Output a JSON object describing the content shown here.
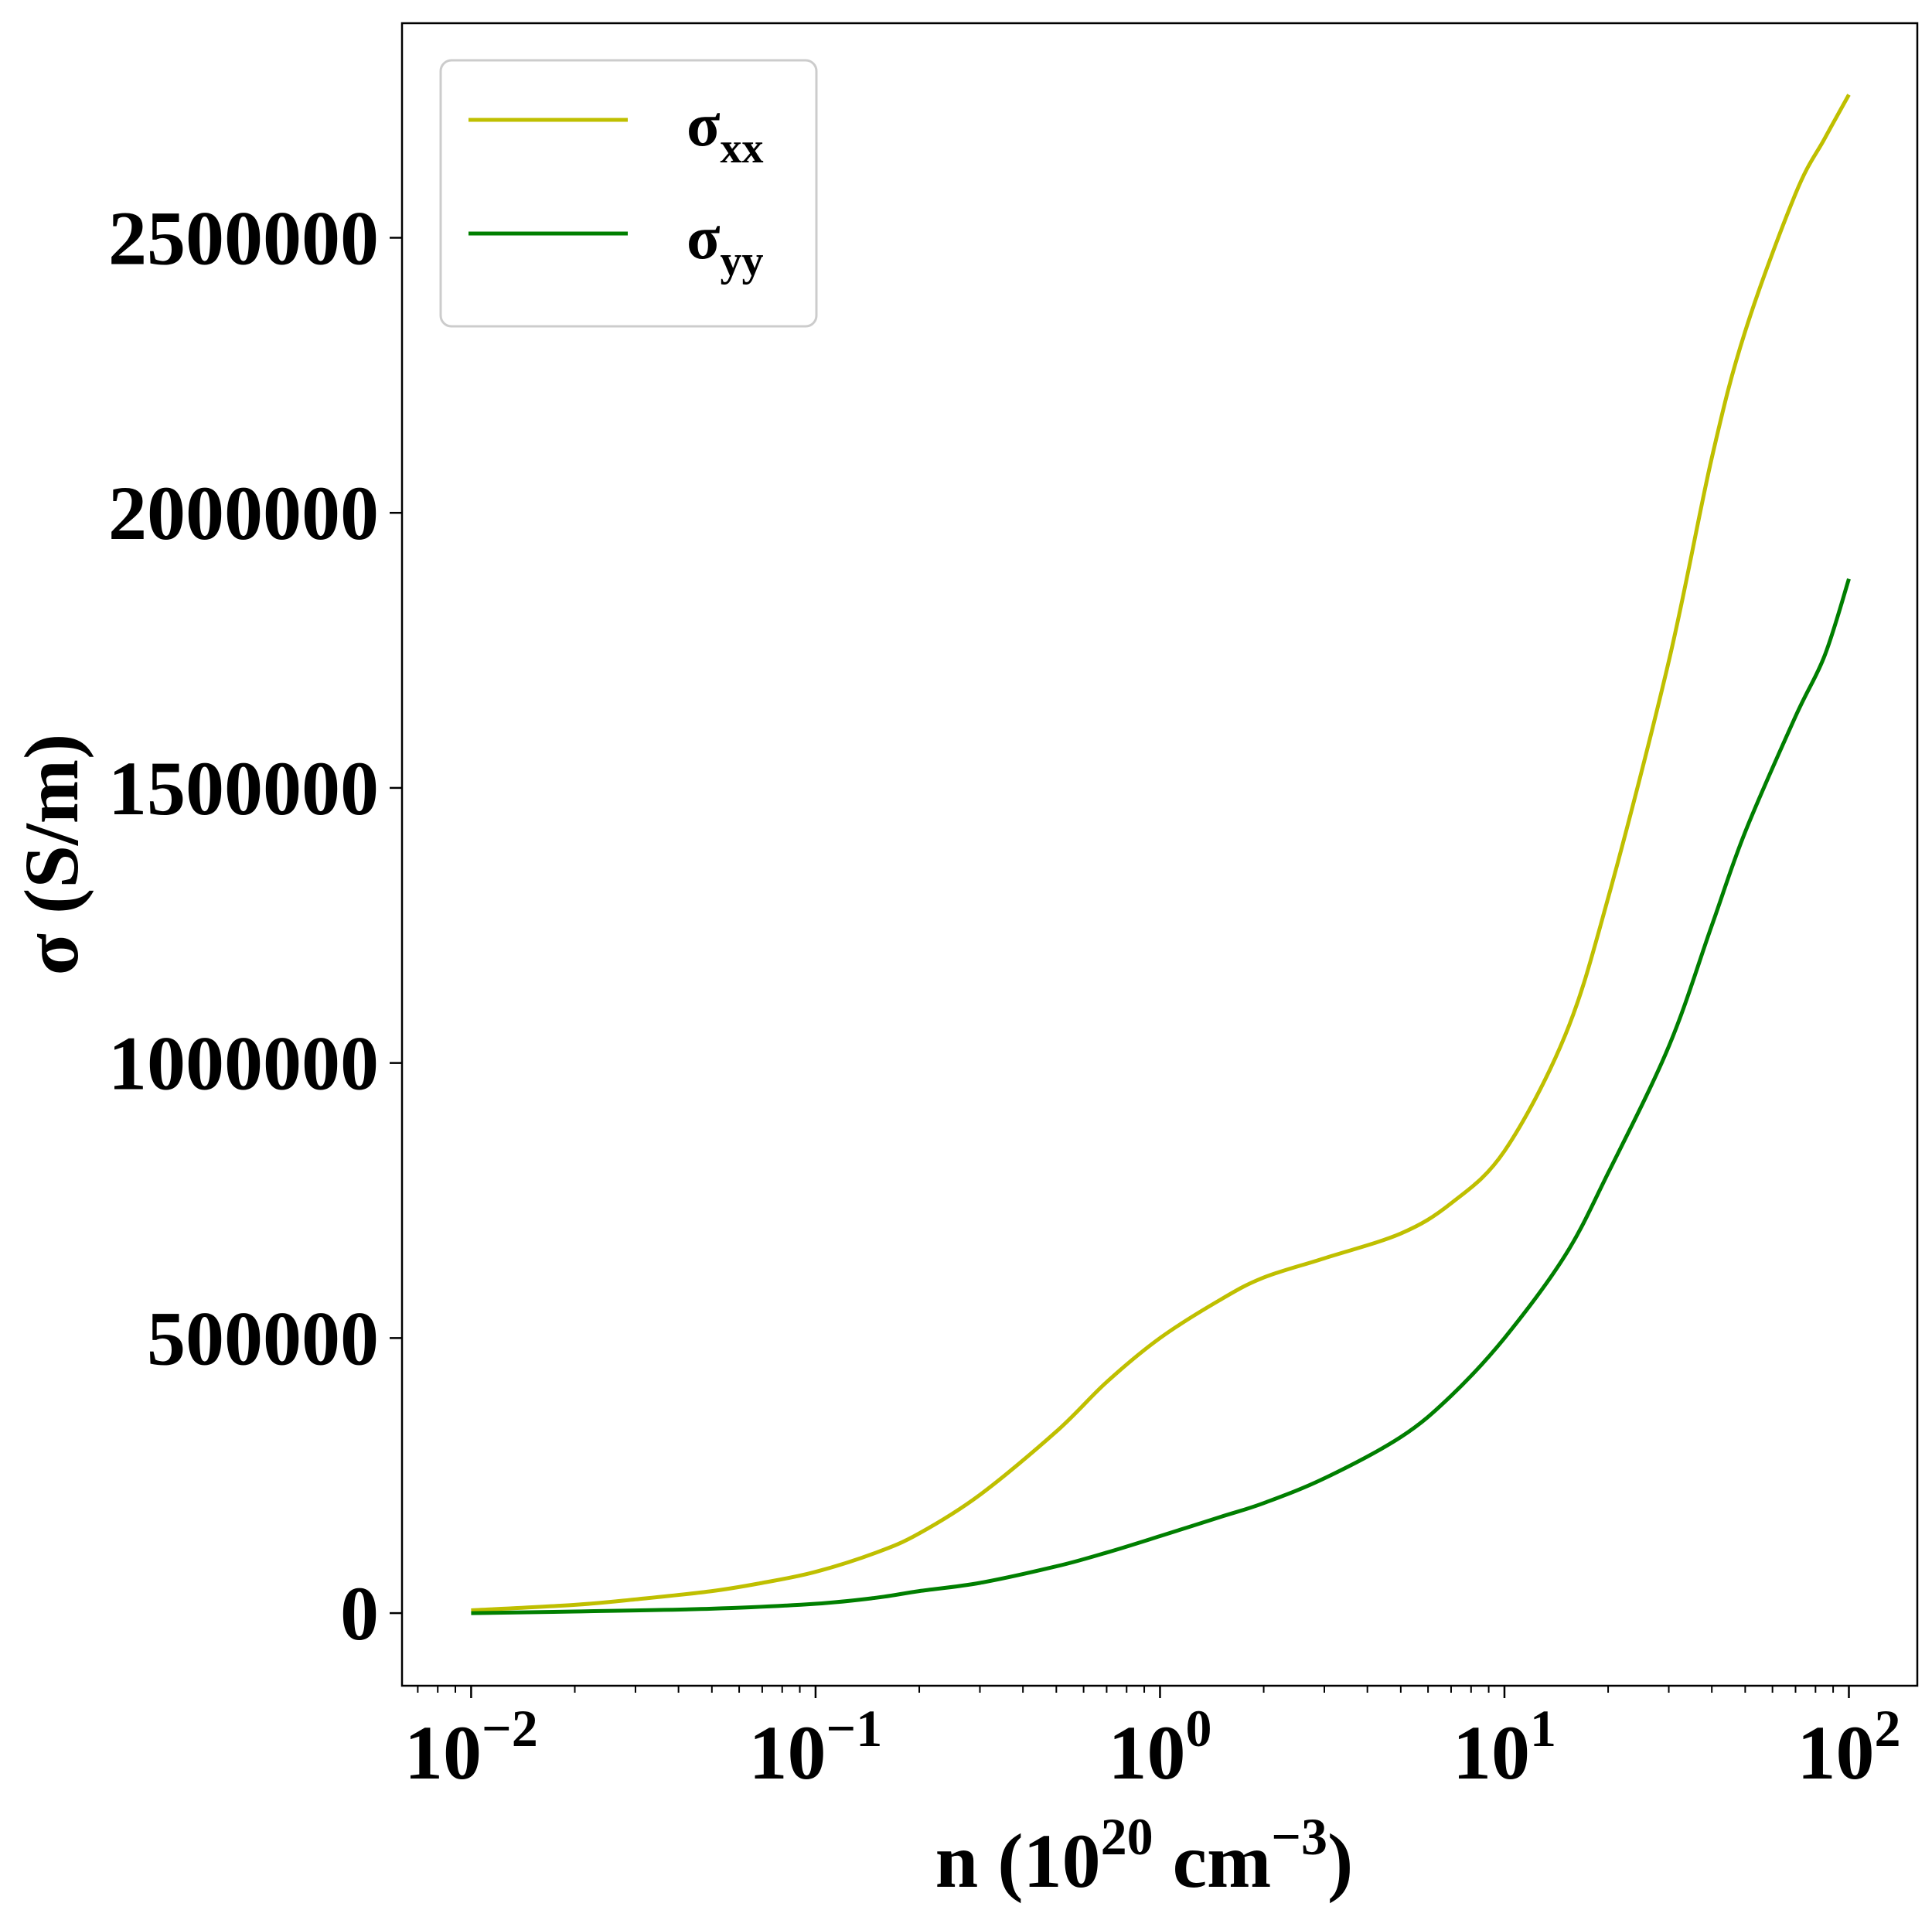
{
  "chart_data": {
    "type": "line",
    "xscale": "log",
    "xlim": [
      0.0063,
      158
    ],
    "ylim": [
      -132000,
      2890000
    ],
    "xlabel": {
      "base": "n (10",
      "sup1": "20",
      "mid": " cm",
      "sup2": "−3",
      "end": ")"
    },
    "ylabel": "σ (S/m)",
    "grid": false,
    "legend_position": "upper-left",
    "x_ticks": [
      {
        "value": 0.01,
        "base": "10",
        "exp": "−2"
      },
      {
        "value": 0.1,
        "base": "10",
        "exp": "−1"
      },
      {
        "value": 1,
        "base": "10",
        "exp": "0"
      },
      {
        "value": 10,
        "base": "10",
        "exp": "1"
      },
      {
        "value": 100,
        "base": "10",
        "exp": "2"
      }
    ],
    "y_ticks": [
      {
        "value": 0,
        "label": "0"
      },
      {
        "value": 500000,
        "label": "500000"
      },
      {
        "value": 1000000,
        "label": "1000000"
      },
      {
        "value": 1500000,
        "label": "1500000"
      },
      {
        "value": 2000000,
        "label": "2000000"
      },
      {
        "value": 2500000,
        "label": "2500000"
      }
    ],
    "series": [
      {
        "name": "σ",
        "name_sub": "xx",
        "color": "#bfbf00",
        "x": [
          0.01,
          0.02,
          0.03,
          0.05,
          0.07,
          0.1,
          0.15,
          0.2,
          0.3,
          0.5,
          0.7,
          1,
          1.5,
          2,
          3,
          5,
          7,
          10,
          15,
          20,
          30,
          40,
          50,
          70,
          85,
          100
        ],
        "y": [
          5000,
          15000,
          25000,
          40000,
          55000,
          75000,
          110000,
          145000,
          215000,
          330000,
          420000,
          500000,
          570000,
          610000,
          645000,
          690000,
          745000,
          840000,
          1050000,
          1300000,
          1730000,
          2100000,
          2330000,
          2580000,
          2680000,
          2760000
        ]
      },
      {
        "name": "σ",
        "name_sub": "yy",
        "color": "#007f00",
        "x": [
          0.01,
          0.02,
          0.05,
          0.1,
          0.15,
          0.2,
          0.3,
          0.5,
          0.7,
          1,
          1.5,
          2,
          3,
          5,
          7,
          10,
          15,
          20,
          30,
          40,
          50,
          70,
          85,
          100
        ],
        "y": [
          0,
          3000,
          8000,
          17000,
          28000,
          40000,
          55000,
          85000,
          110000,
          140000,
          175000,
          200000,
          245000,
          320000,
          395000,
          500000,
          650000,
          800000,
          1030000,
          1250000,
          1420000,
          1630000,
          1740000,
          1880000
        ]
      }
    ]
  }
}
